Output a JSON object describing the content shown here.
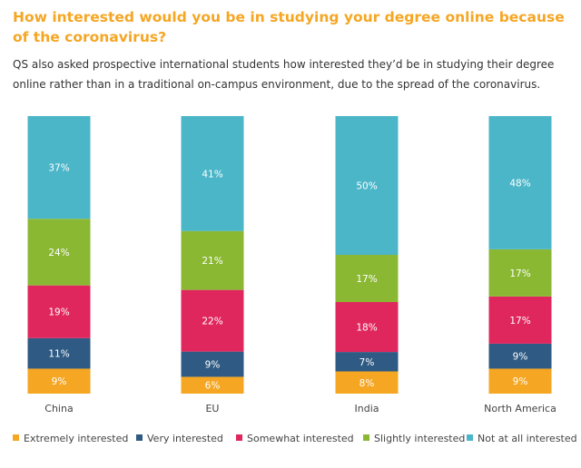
{
  "chart_data": {
    "type": "bar",
    "stacked": true,
    "title": "How interested would you be in studying your degree online because of the coronavirus?",
    "subtitle": "QS also asked prospective international students how interested they’d be in studying their degree online rather than in a traditional on-campus environment, due to the spread of the coronavirus.",
    "categories": [
      "China",
      "EU",
      "India",
      "North America"
    ],
    "series": [
      {
        "name": "Extremely interested",
        "color": "#f5a623",
        "values": [
          9,
          6,
          8,
          9
        ]
      },
      {
        "name": "Very interested",
        "color": "#2e5a83",
        "values": [
          11,
          9,
          7,
          9
        ]
      },
      {
        "name": "Somewhat interested",
        "color": "#e0275d",
        "values": [
          19,
          22,
          18,
          17
        ]
      },
      {
        "name": "Slightly interested",
        "color": "#8ab833",
        "values": [
          24,
          21,
          17,
          17
        ]
      },
      {
        "name": "Not at all interested",
        "color": "#4bb6c8",
        "values": [
          37,
          41,
          50,
          48
        ]
      }
    ],
    "value_suffix": "%",
    "ylim": [
      0,
      100
    ],
    "legend_position": "bottom"
  }
}
